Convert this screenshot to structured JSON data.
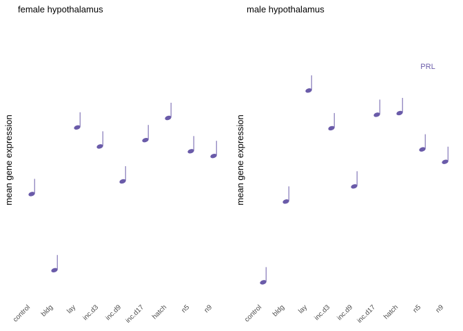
{
  "style": {
    "note_color": "#6a5ba9",
    "tick_color": "#4d4d4d",
    "background": "#ffffff"
  },
  "chart_data": [
    {
      "type": "scatter",
      "marker": "musical-note-icon",
      "title": "female hypothalamus",
      "xlabel": "",
      "ylabel": "mean gene expression",
      "categories": [
        "control",
        "bldg",
        "lay",
        "inc.d3",
        "inc.d9",
        "inc.d17",
        "hatch",
        "n5",
        "n9"
      ],
      "series": [
        {
          "values": [
            0.61,
            0.37,
            0.82,
            0.76,
            0.65,
            0.78,
            0.85,
            0.745,
            0.73
          ]
        }
      ],
      "ylim": [
        0.3,
        1.0
      ],
      "grid": false,
      "legend": "none",
      "annotation": ""
    },
    {
      "type": "scatter",
      "marker": "musical-note-icon",
      "title": "male hypothalamus",
      "xlabel": "",
      "ylabel": "mean gene expression",
      "categories": [
        "control",
        "bldg",
        "lay",
        "inc.d3",
        "inc.d9",
        "inc.d17",
        "hatch",
        "n5",
        "n9"
      ],
      "series": [
        {
          "values": [
            0.43,
            0.67,
            1.0,
            0.888,
            0.715,
            0.928,
            0.933,
            0.825,
            0.788
          ]
        }
      ],
      "ylim": [
        0.4,
        1.06
      ],
      "grid": false,
      "legend": "none",
      "annotation": "PRL"
    }
  ]
}
